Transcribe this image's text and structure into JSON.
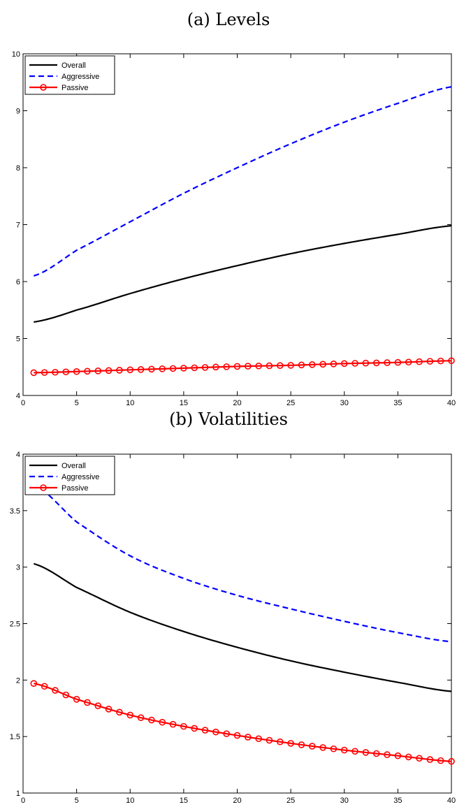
{
  "chart_data": [
    {
      "type": "line",
      "title": "(a) Levels",
      "xlim": [
        0,
        40
      ],
      "ylim": [
        4,
        10
      ],
      "xticks": [
        0,
        5,
        10,
        15,
        20,
        25,
        30,
        35,
        40
      ],
      "yticks": [
        4,
        5,
        6,
        7,
        8,
        9,
        10
      ],
      "legend": "top-left",
      "series": [
        {
          "name": "Overall",
          "color": "#000000",
          "style": "solid",
          "marker": "none",
          "x": [
            1,
            5,
            10,
            15,
            20,
            25,
            30,
            35,
            40
          ],
          "y": [
            5.29,
            5.5,
            5.79,
            6.05,
            6.28,
            6.49,
            6.67,
            6.83,
            6.98
          ]
        },
        {
          "name": "Aggressive",
          "color": "#0000ff",
          "style": "dashed",
          "marker": "none",
          "x": [
            1,
            5,
            10,
            15,
            20,
            25,
            30,
            35,
            40
          ],
          "y": [
            6.1,
            6.55,
            7.05,
            7.55,
            8.0,
            8.42,
            8.8,
            9.13,
            9.42
          ]
        },
        {
          "name": "Passive",
          "color": "#ff0000",
          "style": "solid",
          "marker": "circle",
          "x": [
            1,
            5,
            10,
            15,
            20,
            25,
            30,
            35,
            40
          ],
          "y": [
            4.4,
            4.42,
            4.45,
            4.48,
            4.51,
            4.53,
            4.56,
            4.58,
            4.61
          ]
        }
      ]
    },
    {
      "type": "line",
      "title": "(b) Volatilities",
      "xlim": [
        0,
        40
      ],
      "ylim": [
        1,
        4
      ],
      "xticks": [
        0,
        5,
        10,
        15,
        20,
        25,
        30,
        35,
        40
      ],
      "yticks": [
        1,
        1.5,
        2,
        2.5,
        3,
        3.5,
        4
      ],
      "legend": "top-left",
      "series": [
        {
          "name": "Overall",
          "color": "#000000",
          "style": "solid",
          "marker": "none",
          "x": [
            1,
            5,
            10,
            15,
            20,
            25,
            30,
            35,
            40
          ],
          "y": [
            3.03,
            2.82,
            2.6,
            2.43,
            2.29,
            2.17,
            2.07,
            1.98,
            1.9
          ]
        },
        {
          "name": "Aggressive",
          "color": "#0000ff",
          "style": "dashed",
          "marker": "none",
          "x": [
            1,
            5,
            10,
            15,
            20,
            25,
            30,
            35,
            40
          ],
          "y": [
            3.73,
            3.4,
            3.1,
            2.9,
            2.75,
            2.63,
            2.52,
            2.42,
            2.34
          ]
        },
        {
          "name": "Passive",
          "color": "#ff0000",
          "style": "solid",
          "marker": "circle",
          "x": [
            1,
            5,
            10,
            15,
            20,
            25,
            30,
            35,
            40
          ],
          "y": [
            1.97,
            1.83,
            1.69,
            1.59,
            1.51,
            1.44,
            1.38,
            1.33,
            1.28
          ]
        }
      ]
    }
  ]
}
